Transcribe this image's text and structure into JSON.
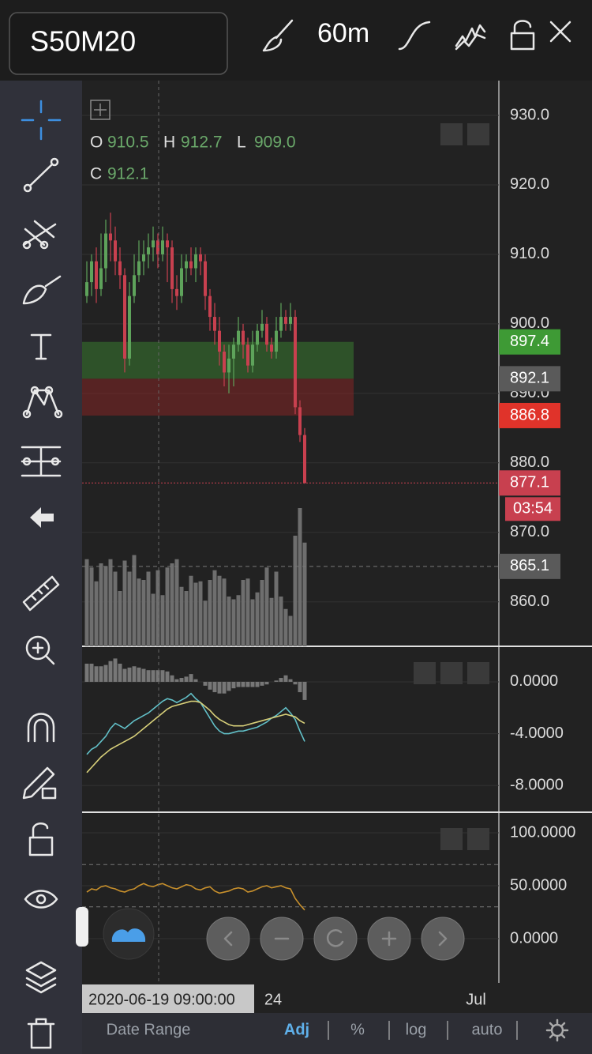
{
  "header": {
    "symbol": "S50M20",
    "interval": "60m"
  },
  "chart_data": [
    {
      "type": "candlestick",
      "ohlc_labels": [
        {
          "key": "O",
          "value": "910.5"
        },
        {
          "key": "H",
          "value": "912.7"
        },
        {
          "key": "L",
          "value": "909.0"
        },
        {
          "key": "C",
          "value": "912.1"
        }
      ],
      "ylim": [
        853.6,
        935
      ],
      "yticks": [
        {
          "value": 930,
          "label": "930.0"
        },
        {
          "value": 920,
          "label": "920.0"
        },
        {
          "value": 910,
          "label": "910.0"
        },
        {
          "value": 900,
          "label": "900.0"
        },
        {
          "value": 890,
          "label": "890.0"
        },
        {
          "value": 880,
          "label": "880.0"
        },
        {
          "value": 870,
          "label": "870.0"
        },
        {
          "value": 860,
          "label": "860.0"
        }
      ],
      "up_color": "#5ea35b",
      "down_color": "#c8404f",
      "candles": [
        {
          "o": 904,
          "h": 909,
          "l": 903,
          "c": 906
        },
        {
          "o": 906,
          "h": 910,
          "l": 904,
          "c": 909
        },
        {
          "o": 909,
          "h": 911,
          "l": 903,
          "c": 905
        },
        {
          "o": 905,
          "h": 913,
          "l": 904,
          "c": 908
        },
        {
          "o": 908,
          "h": 915,
          "l": 906,
          "c": 913
        },
        {
          "o": 913,
          "h": 916,
          "l": 909,
          "c": 912
        },
        {
          "o": 912,
          "h": 914,
          "l": 907,
          "c": 909
        },
        {
          "o": 909,
          "h": 911,
          "l": 905,
          "c": 907
        },
        {
          "o": 907,
          "h": 908,
          "l": 893,
          "c": 895
        },
        {
          "o": 895,
          "h": 906,
          "l": 894,
          "c": 904
        },
        {
          "o": 904,
          "h": 910,
          "l": 903,
          "c": 907
        },
        {
          "o": 907,
          "h": 912,
          "l": 906,
          "c": 909
        },
        {
          "o": 909,
          "h": 912,
          "l": 907,
          "c": 910
        },
        {
          "o": 910,
          "h": 913,
          "l": 908,
          "c": 911
        },
        {
          "o": 911,
          "h": 914,
          "l": 909,
          "c": 912
        },
        {
          "o": 912,
          "h": 913,
          "l": 908,
          "c": 910
        },
        {
          "o": 910,
          "h": 914,
          "l": 909,
          "c": 912
        },
        {
          "o": 912,
          "h": 913,
          "l": 906,
          "c": 911
        },
        {
          "o": 911,
          "h": 912,
          "l": 903,
          "c": 905
        },
        {
          "o": 905,
          "h": 907,
          "l": 902,
          "c": 904
        },
        {
          "o": 904,
          "h": 910,
          "l": 903,
          "c": 908
        },
        {
          "o": 908,
          "h": 910,
          "l": 906,
          "c": 909
        },
        {
          "o": 909,
          "h": 911,
          "l": 907,
          "c": 908
        },
        {
          "o": 908,
          "h": 911,
          "l": 906,
          "c": 910
        },
        {
          "o": 910,
          "h": 911,
          "l": 907,
          "c": 909
        },
        {
          "o": 909,
          "h": 910,
          "l": 902,
          "c": 904
        },
        {
          "o": 904,
          "h": 905,
          "l": 899,
          "c": 901
        },
        {
          "o": 901,
          "h": 903,
          "l": 897,
          "c": 899
        },
        {
          "o": 899,
          "h": 901,
          "l": 894,
          "c": 896
        },
        {
          "o": 896,
          "h": 897,
          "l": 891,
          "c": 893
        },
        {
          "o": 893,
          "h": 897,
          "l": 890,
          "c": 895
        },
        {
          "o": 895,
          "h": 898,
          "l": 891,
          "c": 897
        },
        {
          "o": 897,
          "h": 901,
          "l": 896,
          "c": 899
        },
        {
          "o": 899,
          "h": 900,
          "l": 895,
          "c": 897
        },
        {
          "o": 897,
          "h": 898,
          "l": 893,
          "c": 894
        },
        {
          "o": 894,
          "h": 899,
          "l": 893,
          "c": 897
        },
        {
          "o": 897,
          "h": 900,
          "l": 896,
          "c": 899
        },
        {
          "o": 899,
          "h": 902,
          "l": 898,
          "c": 900
        },
        {
          "o": 900,
          "h": 901,
          "l": 896,
          "c": 897
        },
        {
          "o": 897,
          "h": 898,
          "l": 895,
          "c": 896
        },
        {
          "o": 896,
          "h": 901,
          "l": 895,
          "c": 899
        },
        {
          "o": 899,
          "h": 903,
          "l": 898,
          "c": 901
        },
        {
          "o": 901,
          "h": 902,
          "l": 899,
          "c": 900
        },
        {
          "o": 900,
          "h": 903,
          "l": 899,
          "c": 901
        },
        {
          "o": 901,
          "h": 902,
          "l": 887,
          "c": 888
        },
        {
          "o": 888,
          "h": 889,
          "l": 883,
          "c": 884
        },
        {
          "o": 884,
          "h": 885,
          "l": 877,
          "c": 877.1
        }
      ],
      "zones": [
        {
          "from": 892.1,
          "to": 897.4,
          "color": "rgba(58,130,48,0.5)"
        },
        {
          "from": 886.8,
          "to": 892.1,
          "color": "rgba(140,36,36,0.5)"
        }
      ],
      "price_labels": [
        {
          "value": 897.4,
          "label": "897.4",
          "color": "#3e9a35"
        },
        {
          "value": 892.1,
          "label": "892.1",
          "color": "#5a5a5a"
        },
        {
          "value": 886.8,
          "label": "886.8",
          "color": "#e0332a"
        }
      ],
      "current": {
        "value": 877.1,
        "label": "877.1",
        "countdown": "03:54",
        "color": "#c8404f"
      },
      "volume_level": {
        "value": 865.1,
        "label": "865.1",
        "color": "#5a5a5a"
      },
      "volume": {
        "lim": [
          0,
          100
        ],
        "color": "#6e6e6e",
        "values": [
          63,
          57,
          47,
          60,
          58,
          63,
          54,
          40,
          62,
          54,
          66,
          49,
          48,
          54,
          38,
          55,
          37,
          57,
          60,
          63,
          43,
          40,
          51,
          46,
          47,
          33,
          48,
          55,
          51,
          49,
          36,
          34,
          37,
          48,
          49,
          34,
          39,
          48,
          57,
          35,
          54,
          36,
          27,
          22,
          80,
          100,
          75
        ]
      },
      "x_axis": {
        "crosshair_label": "2020-06-19 09:00:00",
        "ticks": [
          "24",
          "Jul"
        ]
      }
    },
    {
      "type": "macd",
      "ylim": [
        -10.06,
        2.74
      ],
      "yticks": [
        {
          "value": 0,
          "label": "0.0000"
        },
        {
          "value": -4,
          "label": "-4.0000"
        },
        {
          "value": -8,
          "label": "-8.0000"
        }
      ],
      "histogram": {
        "color": "#777777",
        "values": [
          1.4,
          1.4,
          1.2,
          1.2,
          1.3,
          1.6,
          1.8,
          1.4,
          1.0,
          1.1,
          1.2,
          1.1,
          1.0,
          0.9,
          0.9,
          0.9,
          0.9,
          0.8,
          0.5,
          0.2,
          0.3,
          0.4,
          0.6,
          0.2,
          0,
          -0.3,
          -0.6,
          -0.8,
          -0.9,
          -0.9,
          -0.7,
          -0.5,
          -0.4,
          -0.4,
          -0.4,
          -0.4,
          -0.4,
          -0.3,
          -0.2,
          0,
          0.1,
          0.3,
          0.5,
          0.2,
          -0.2,
          -0.8,
          -1.4
        ]
      },
      "series": [
        {
          "color": "#62c0c8",
          "values": [
            -5.6,
            -5.2,
            -5.0,
            -4.6,
            -4.2,
            -3.6,
            -3.2,
            -3.4,
            -3.6,
            -3.3,
            -3.0,
            -2.8,
            -2.6,
            -2.4,
            -2.1,
            -1.8,
            -1.5,
            -1.3,
            -1.4,
            -1.6,
            -1.4,
            -1.2,
            -0.9,
            -1.3,
            -1.6,
            -2.2,
            -2.8,
            -3.4,
            -3.8,
            -4.0,
            -4.0,
            -3.9,
            -3.8,
            -3.8,
            -3.7,
            -3.6,
            -3.5,
            -3.3,
            -3.1,
            -2.8,
            -2.6,
            -2.3,
            -2.0,
            -2.4,
            -2.9,
            -3.8,
            -4.6
          ]
        },
        {
          "color": "#d8d07a",
          "values": [
            -7.0,
            -6.6,
            -6.2,
            -5.8,
            -5.5,
            -5.2,
            -5.0,
            -4.8,
            -4.6,
            -4.4,
            -4.2,
            -3.9,
            -3.6,
            -3.3,
            -3.0,
            -2.7,
            -2.4,
            -2.1,
            -1.9,
            -1.8,
            -1.7,
            -1.6,
            -1.5,
            -1.5,
            -1.6,
            -1.9,
            -2.2,
            -2.6,
            -2.9,
            -3.1,
            -3.3,
            -3.4,
            -3.4,
            -3.4,
            -3.3,
            -3.2,
            -3.1,
            -3.0,
            -2.9,
            -2.8,
            -2.7,
            -2.6,
            -2.5,
            -2.6,
            -2.7,
            -3.0,
            -3.2
          ]
        }
      ]
    },
    {
      "type": "rsi",
      "ylim": [
        -41.8,
        119.4
      ],
      "yticks": [
        {
          "value": 100,
          "label": "100.0000"
        },
        {
          "value": 50,
          "label": "50.0000"
        },
        {
          "value": 0,
          "label": "0.0000"
        }
      ],
      "levels": [
        70,
        30
      ],
      "series": [
        {
          "color": "#c8902c",
          "values": [
            44,
            47,
            46,
            49,
            50,
            48,
            47,
            45,
            44,
            46,
            47,
            50,
            52,
            50,
            49,
            51,
            52,
            50,
            48,
            47,
            49,
            51,
            50,
            47,
            46,
            48,
            49,
            45,
            43,
            44,
            45,
            47,
            48,
            47,
            44,
            45,
            47,
            49,
            50,
            48,
            49,
            50,
            48,
            47,
            38,
            32,
            27
          ]
        }
      ]
    }
  ],
  "bottom_bar": {
    "items": [
      "Date Range",
      "Adj",
      "%",
      "log",
      "auto"
    ]
  }
}
